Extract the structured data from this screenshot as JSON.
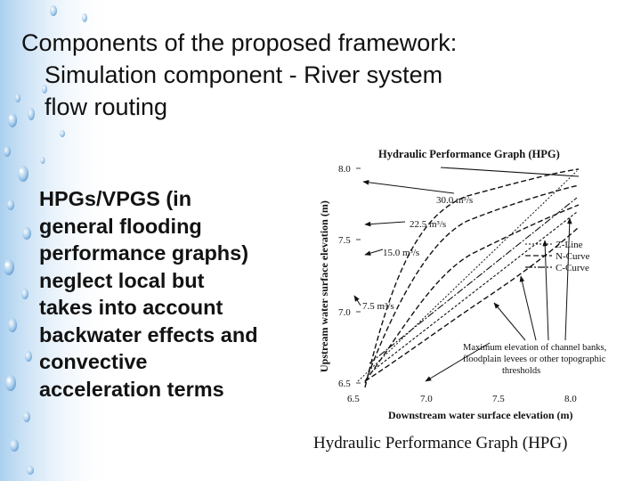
{
  "slide": {
    "title_lines": [
      "Components of the proposed framework:",
      "Simulation component - River system",
      "flow routing"
    ],
    "body_lines": [
      "HPGs/VPGS (in",
      "general flooding",
      "performance graphs)",
      "neglect local but",
      "takes into account",
      "backwater effects and",
      "convective",
      "acceleration terms"
    ],
    "caption": "Hydraulic Performance Graph (HPG)"
  },
  "graph": {
    "title": "Hydraulic Performance Graph (HPG)",
    "xlabel": "Downstream water surface elevation (m)",
    "ylabel": "Upstream water surface elevation (m)",
    "x_ticks": [
      "6.5",
      "7.0",
      "7.5",
      "8.0"
    ],
    "y_ticks": [
      "8.0",
      "7.5",
      "7.0",
      "6.5"
    ],
    "flow_labels": [
      "30.0 m³/s",
      "22.5 m³/s",
      "15.0 m³/s",
      "7.5 m³/s"
    ],
    "legend": [
      "Z-Line",
      "N-Curve",
      "C-Curve"
    ],
    "annotation_lines": [
      "Maximum elevation of channel banks,",
      "floodplain levees or other topographic",
      "thresholds"
    ]
  },
  "colors": {
    "background": "#ffffff",
    "water_blue": "#7eb3e0",
    "text": "#111111"
  }
}
